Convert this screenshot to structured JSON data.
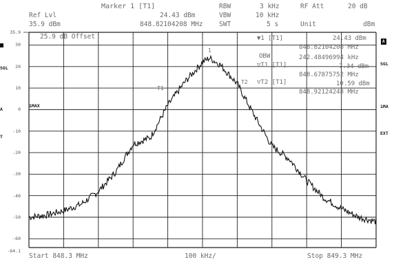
{
  "header": {
    "marker_title": "Marker 1 [T1]",
    "ref_lvl_label": "Ref Lvl",
    "ref_lvl_value": "35.9 dBm",
    "marker_level": "24.43 dBm",
    "marker_freq": "848.82104208 MHz",
    "rbw_label": "RBW",
    "rbw_value": "3 kHz",
    "vbw_label": "VBW",
    "vbw_value": "10 kHz",
    "swt_label": "SWT",
    "swt_value": "5 s",
    "rf_att_label": "RF Att",
    "rf_att_value": "20 dB",
    "unit_label": "Unit",
    "unit_value": "dBm"
  },
  "screen": {
    "offset_text": "25.9 dB Offset",
    "top_scale": "35.9",
    "bottom_scale": "-64.1",
    "y_labels": [
      "30",
      "20",
      "10",
      "0",
      "-10",
      "-20",
      "-30",
      "-40",
      "-50",
      "-60"
    ],
    "imax_left": "1MAX",
    "imax_right": "1MA",
    "left_side_labels": [
      "1",
      "SGL",
      "",
      "A",
      "T"
    ],
    "right_tag_a": "A",
    "right_sgl": "SGL",
    "right_ext": "EXT",
    "trace_marker_label": "1",
    "trace_marker_t1": "T1",
    "trace_marker_t2": "T2"
  },
  "marker_info": {
    "m1_label": "1 [T1]",
    "m1_level": "24.43 dBm",
    "m1_freq": "848.82104208 MHz",
    "obw_label": "OBW",
    "obw_value": "242.48496994 kHz",
    "t1_label": "T1 [T1]",
    "t1_level": "7.34 dBm",
    "t1_freq": "848.67875752 MHz",
    "t2_label": "T2 [T1]",
    "t2_level": "10.59 dBm",
    "t2_freq": "848.92124248 MHz"
  },
  "footer": {
    "start": "Start 848.3 MHz",
    "span": "100 kHz/",
    "stop": "Stop 849.3 MHz"
  },
  "chart_data": {
    "type": "line",
    "title": "",
    "xlabel": "",
    "ylabel": "",
    "x_range_mhz": [
      848.3,
      849.3
    ],
    "ylim": [
      -64.1,
      35.9
    ],
    "grid": true,
    "series": [
      {
        "x": [
          848.3,
          848.35,
          848.4,
          848.45,
          848.5,
          848.55,
          848.6,
          848.65,
          848.7,
          848.75,
          848.8,
          848.82,
          848.85,
          848.9,
          848.95,
          849.0,
          849.05,
          849.1,
          849.15,
          849.2,
          849.25,
          849.3
        ],
        "y": [
          -50,
          -49,
          -47,
          -44,
          -38,
          -29,
          -16,
          -13,
          2,
          13,
          22,
          24,
          21,
          12,
          -3,
          -17,
          -23,
          -33,
          -41,
          -46,
          -50,
          -52
        ]
      }
    ]
  }
}
